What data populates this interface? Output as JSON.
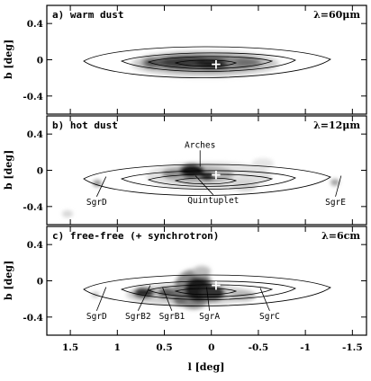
{
  "figure": {
    "xlabel": "l [deg]",
    "ylabel": "b [deg]",
    "x_ticks": [
      {
        "value": 1.5,
        "label": "1.5"
      },
      {
        "value": 1.0,
        "label": "1"
      },
      {
        "value": 0.5,
        "label": "0.5"
      },
      {
        "value": 0.0,
        "label": "0"
      },
      {
        "value": -0.5,
        "label": "-0.5"
      },
      {
        "value": -1.0,
        "label": "-1"
      },
      {
        "value": -1.5,
        "label": "-1.5"
      }
    ],
    "y_ticks": [
      {
        "value": 0.4,
        "label": "0.4"
      },
      {
        "value": 0.0,
        "label": "0"
      },
      {
        "value": -0.4,
        "label": "-0.4"
      }
    ],
    "xlim": [
      1.75,
      -1.65
    ],
    "ylim": [
      -0.6,
      0.6
    ],
    "contour_levels": 4,
    "marker": {
      "l": -0.05,
      "b": -0.05,
      "symbol": "+"
    }
  },
  "panels": [
    {
      "title": "a) warm dust",
      "wavelength": "λ=60μm",
      "labels": []
    },
    {
      "title": "b) hot dust",
      "wavelength": "λ=12μm",
      "labels": [
        {
          "text": "Arches",
          "l": 0.12,
          "b": 0.25,
          "pl": 0.12,
          "pb": 0.04
        },
        {
          "text": "SgrD",
          "l": 1.22,
          "b": -0.38,
          "pl": 1.12,
          "pb": -0.07
        },
        {
          "text": "Quintuplet",
          "l": -0.02,
          "b": -0.36,
          "pl": 0.17,
          "pb": -0.06
        },
        {
          "text": "SgrE",
          "l": -1.32,
          "b": -0.38,
          "pl": -1.38,
          "pb": -0.06
        }
      ]
    },
    {
      "title": "c) free-free (+ synchrotron)",
      "wavelength": "λ=6cm",
      "labels": [
        {
          "text": "SgrD",
          "l": 1.22,
          "b": -0.42,
          "pl": 1.12,
          "pb": -0.07
        },
        {
          "text": "SgrB2",
          "l": 0.78,
          "b": -0.42,
          "pl": 0.65,
          "pb": -0.05
        },
        {
          "text": "SgrB1",
          "l": 0.42,
          "b": -0.42,
          "pl": 0.52,
          "pb": -0.07
        },
        {
          "text": "SgrA",
          "l": 0.02,
          "b": -0.42,
          "pl": 0.05,
          "pb": -0.07
        },
        {
          "text": "SgrC",
          "l": -0.62,
          "b": -0.42,
          "pl": -0.52,
          "pb": -0.08
        }
      ]
    }
  ]
}
